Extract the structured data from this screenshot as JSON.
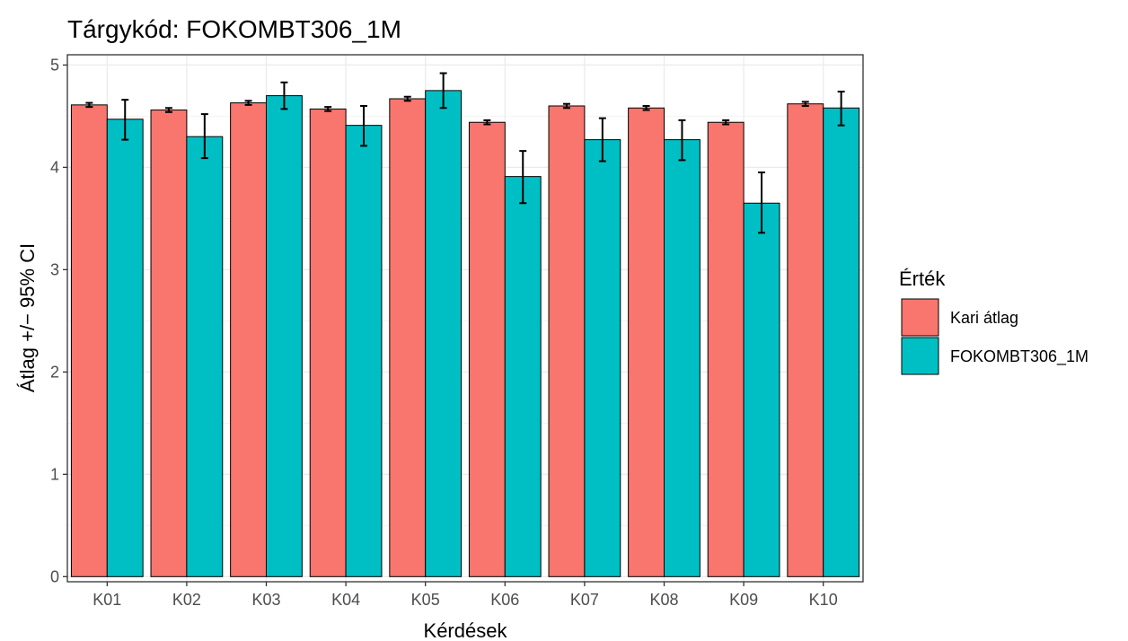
{
  "chart_data": {
    "type": "bar",
    "title": "Tárgykód:  FOKOMBT306_1M",
    "xlabel": "Kérdések",
    "ylabel": "Átlag +/− 95% CI",
    "ylim": [
      -0.05,
      5.1
    ],
    "yticks": [
      0,
      1,
      2,
      3,
      4,
      5
    ],
    "grid": true,
    "legend_position": "right",
    "legend_title": "Érték",
    "categories": [
      "K01",
      "K02",
      "K03",
      "K04",
      "K05",
      "K06",
      "K07",
      "K08",
      "K09",
      "K10"
    ],
    "series": [
      {
        "name": "Kari átlag",
        "color": "#F8766D",
        "values": [
          4.61,
          4.56,
          4.63,
          4.57,
          4.67,
          4.44,
          4.6,
          4.58,
          4.44,
          4.62
        ],
        "ci_low": [
          4.59,
          4.54,
          4.61,
          4.55,
          4.65,
          4.42,
          4.58,
          4.56,
          4.42,
          4.6
        ],
        "ci_high": [
          4.63,
          4.58,
          4.65,
          4.59,
          4.69,
          4.46,
          4.62,
          4.6,
          4.46,
          4.64
        ]
      },
      {
        "name": "FOKOMBT306_1M",
        "color": "#00BFC4",
        "values": [
          4.47,
          4.3,
          4.7,
          4.41,
          4.75,
          3.91,
          4.27,
          4.27,
          3.65,
          4.58
        ],
        "ci_low": [
          4.27,
          4.09,
          4.57,
          4.21,
          4.58,
          3.65,
          4.06,
          4.07,
          3.36,
          4.41
        ],
        "ci_high": [
          4.66,
          4.52,
          4.83,
          4.6,
          4.92,
          4.16,
          4.48,
          4.46,
          3.95,
          4.74
        ]
      }
    ]
  }
}
